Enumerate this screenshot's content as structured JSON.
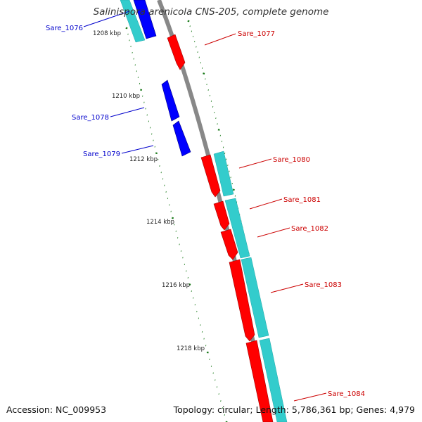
{
  "title": "Salinispora arenicola CNS-205, complete genome",
  "footer": {
    "accession": "Accession: NC_009953",
    "stats": "Topology: circular; Length: 5,786,361 bp; Genes: 4,979"
  },
  "colors": {
    "forward_gene": "#ff0000",
    "reverse_gene": "#0000ff",
    "cds_track": "#33cccc",
    "backbone": "#888888",
    "tick": "#1a7a1a",
    "forward_label": "#cc0000",
    "reverse_label": "#0000cc"
  },
  "scale": {
    "unit": "kbp",
    "ticks": [
      "1208 kbp",
      "1210 kbp",
      "1212 kbp",
      "1214 kbp",
      "1216 kbp",
      "1218 kbp"
    ]
  },
  "genes": [
    {
      "id": "Sare_1076",
      "strand": "reverse"
    },
    {
      "id": "Sare_1077",
      "strand": "forward"
    },
    {
      "id": "Sare_1078",
      "strand": "reverse"
    },
    {
      "id": "Sare_1079",
      "strand": "reverse"
    },
    {
      "id": "Sare_1080",
      "strand": "forward"
    },
    {
      "id": "Sare_1081",
      "strand": "forward"
    },
    {
      "id": "Sare_1082",
      "strand": "forward"
    },
    {
      "id": "Sare_1083",
      "strand": "forward"
    },
    {
      "id": "Sare_1084",
      "strand": "forward"
    }
  ]
}
